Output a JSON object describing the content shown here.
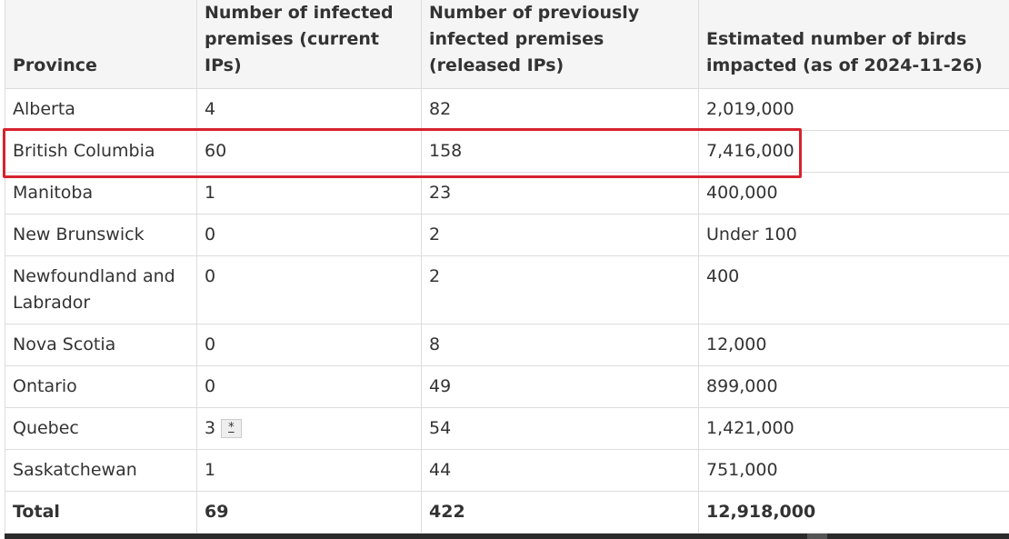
{
  "headers": {
    "province": "Province",
    "current": "Number of infected premises (current IPs)",
    "released": "Number of previously infected premises (released IPs)",
    "birds": "Estimated number of birds impacted (as of 2024-11-26)"
  },
  "rows": [
    {
      "province": "Alberta",
      "current": "4",
      "released": "82",
      "birds": "2,019,000"
    },
    {
      "province": "British Columbia",
      "current": "60",
      "released": "158",
      "birds": "7,416,000"
    },
    {
      "province": "Manitoba",
      "current": "1",
      "released": "23",
      "birds": "400,000"
    },
    {
      "province": "New Brunswick",
      "current": "0",
      "released": "2",
      "birds": "Under 100"
    },
    {
      "province": "Newfoundland and Labrador",
      "current": "0",
      "released": "2",
      "birds": "400"
    },
    {
      "province": "Nova Scotia",
      "current": "0",
      "released": "8",
      "birds": "12,000"
    },
    {
      "province": "Ontario",
      "current": "0",
      "released": "49",
      "birds": "899,000"
    },
    {
      "province": "Quebec",
      "current": "3",
      "current_note": "*",
      "released": "54",
      "birds": "1,421,000"
    },
    {
      "province": "Saskatchewan",
      "current": "1",
      "released": "44",
      "birds": "751,000"
    }
  ],
  "total": {
    "label": "Total",
    "current": "69",
    "released": "422",
    "birds": "12,918,000"
  },
  "colors": {
    "highlight": "#d6232f",
    "header_bg": "#f5f5f5",
    "border": "#dddddd"
  }
}
